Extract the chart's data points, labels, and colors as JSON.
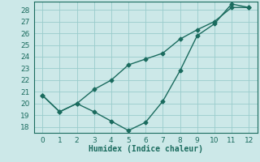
{
  "line1_x": [
    0,
    1,
    2,
    3,
    4,
    5,
    6,
    7,
    8,
    9,
    10,
    11,
    12
  ],
  "line1_y": [
    20.7,
    19.3,
    20.0,
    19.3,
    18.5,
    17.7,
    18.4,
    20.2,
    22.8,
    25.8,
    26.8,
    28.5,
    28.2
  ],
  "line2_x": [
    0,
    1,
    2,
    3,
    4,
    5,
    6,
    7,
    8,
    9,
    10,
    11,
    12
  ],
  "line2_y": [
    20.7,
    19.3,
    20.0,
    21.2,
    22.0,
    23.3,
    23.8,
    24.3,
    25.5,
    26.3,
    27.0,
    28.2,
    28.2
  ],
  "line_color": "#1a6b5e",
  "xlabel": "Humidex (Indice chaleur)",
  "ylim": [
    17.5,
    28.7
  ],
  "xlim": [
    -0.5,
    12.5
  ],
  "yticks": [
    18,
    19,
    20,
    21,
    22,
    23,
    24,
    25,
    26,
    27,
    28
  ],
  "xticks": [
    0,
    1,
    2,
    3,
    4,
    5,
    6,
    7,
    8,
    9,
    10,
    11,
    12
  ],
  "bg_color": "#cce8e8",
  "grid_color": "#99cccc",
  "line_color2": "#1a6b5e",
  "xlabel_fontsize": 7,
  "tick_fontsize": 6.5
}
